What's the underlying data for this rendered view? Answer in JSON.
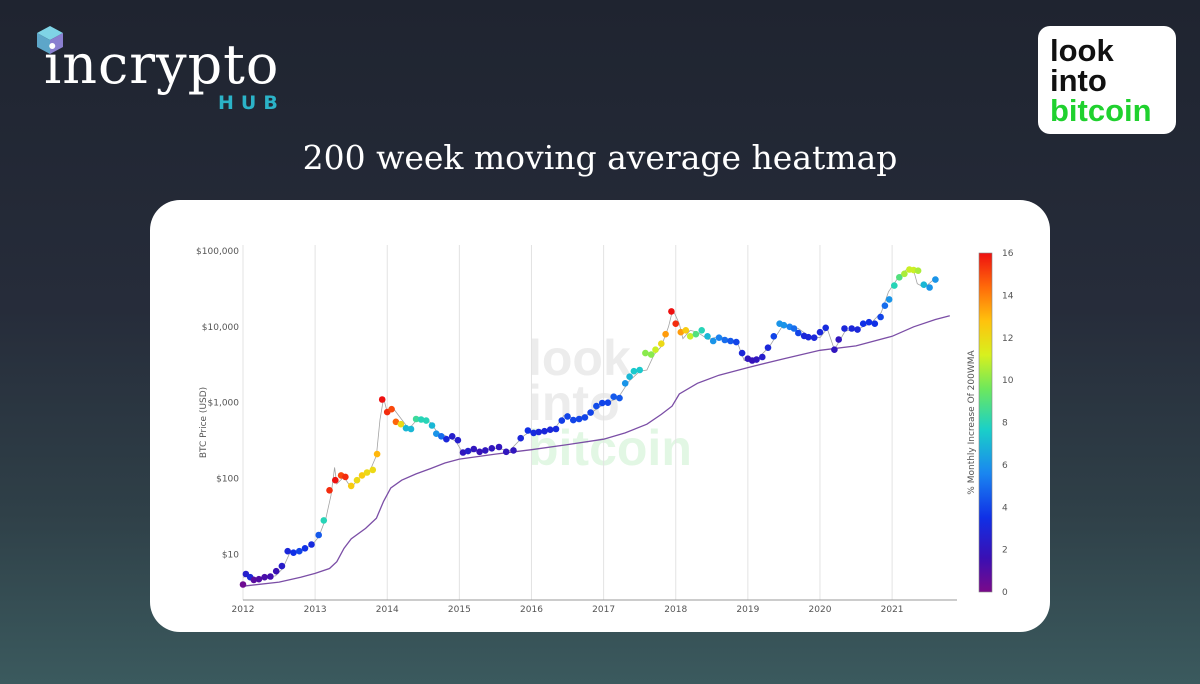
{
  "brand": {
    "name": "incrypto",
    "sub": "HUB",
    "accent": "#2bb3c8"
  },
  "partner_logo": {
    "line1": "look",
    "line2": "into",
    "line3": "bitcoin",
    "green": "#1fd12e"
  },
  "page_title": "200 week moving average heatmap",
  "chart_data": {
    "type": "scatter",
    "yscale": "log",
    "ylabel": "BTC Price (USD)",
    "ylim": [
      2.5,
      120000
    ],
    "y_ticks": [
      10,
      100,
      1000,
      10000,
      100000
    ],
    "y_tick_labels": [
      "$10",
      "$100",
      "$1,000",
      "$10,000",
      "$100,000"
    ],
    "xlim": [
      2012.0,
      2021.9
    ],
    "x_ticks": [
      2012,
      2013,
      2014,
      2015,
      2016,
      2017,
      2018,
      2019,
      2020,
      2021
    ],
    "x_tick_labels": [
      "2012",
      "2013",
      "2014",
      "2015",
      "2016",
      "2017",
      "2018",
      "2019",
      "2020",
      "2021"
    ],
    "grid": true,
    "watermark": [
      "look",
      "into",
      "bitcoin"
    ],
    "colorbar": {
      "label": "% Monthly Increase Of 200WMA",
      "min": 0,
      "max": 16,
      "ticks": [
        0,
        2,
        4,
        6,
        8,
        10,
        12,
        14,
        16
      ]
    },
    "series": [
      {
        "type": "line",
        "color": "#7b4ea6",
        "points": [
          [
            2012.0,
            3.8
          ],
          [
            2012.5,
            4.3
          ],
          [
            2012.8,
            5.0
          ],
          [
            2013.0,
            5.6
          ],
          [
            2013.2,
            6.5
          ],
          [
            2013.3,
            8
          ],
          [
            2013.4,
            12
          ],
          [
            2013.5,
            16
          ],
          [
            2013.7,
            22
          ],
          [
            2013.85,
            30
          ],
          [
            2013.95,
            50
          ],
          [
            2014.05,
            75
          ],
          [
            2014.2,
            95
          ],
          [
            2014.4,
            115
          ],
          [
            2014.6,
            135
          ],
          [
            2014.8,
            160
          ],
          [
            2015.0,
            180
          ],
          [
            2015.5,
            210
          ],
          [
            2016.0,
            240
          ],
          [
            2016.5,
            280
          ],
          [
            2017.0,
            330
          ],
          [
            2017.3,
            400
          ],
          [
            2017.6,
            520
          ],
          [
            2017.8,
            700
          ],
          [
            2017.95,
            900
          ],
          [
            2018.05,
            1300
          ],
          [
            2018.3,
            1800
          ],
          [
            2018.6,
            2300
          ],
          [
            2019.0,
            2900
          ],
          [
            2019.5,
            3800
          ],
          [
            2020.0,
            4900
          ],
          [
            2020.5,
            5600
          ],
          [
            2021.0,
            7500
          ],
          [
            2021.3,
            10000
          ],
          [
            2021.6,
            12500
          ],
          [
            2021.8,
            14000
          ]
        ]
      },
      {
        "type": "line",
        "color": "#a3a3a3",
        "points": [
          [
            2012.0,
            5.0
          ],
          [
            2012.1,
            5.3
          ],
          [
            2012.2,
            4.8
          ],
          [
            2012.3,
            5.0
          ],
          [
            2012.45,
            5.2
          ],
          [
            2012.55,
            6.5
          ],
          [
            2012.65,
            10.5
          ],
          [
            2012.8,
            11.5
          ],
          [
            2012.95,
            13
          ],
          [
            2013.05,
            17
          ],
          [
            2013.15,
            30
          ],
          [
            2013.22,
            60
          ],
          [
            2013.27,
            140
          ],
          [
            2013.3,
            85
          ],
          [
            2013.4,
            105
          ],
          [
            2013.5,
            75
          ],
          [
            2013.6,
            100
          ],
          [
            2013.75,
            120
          ],
          [
            2013.85,
            200
          ],
          [
            2013.9,
            600
          ],
          [
            2013.95,
            1150
          ],
          [
            2014.0,
            750
          ],
          [
            2014.1,
            800
          ],
          [
            2014.2,
            600
          ],
          [
            2014.3,
            450
          ],
          [
            2014.4,
            580
          ],
          [
            2014.5,
            600
          ],
          [
            2014.6,
            550
          ],
          [
            2014.7,
            400
          ],
          [
            2014.8,
            370
          ],
          [
            2014.95,
            310
          ],
          [
            2015.05,
            215
          ],
          [
            2015.3,
            235
          ],
          [
            2015.5,
            250
          ],
          [
            2015.7,
            235
          ],
          [
            2015.9,
            370
          ],
          [
            2016.0,
            430
          ],
          [
            2016.3,
            420
          ],
          [
            2016.45,
            680
          ],
          [
            2016.6,
            620
          ],
          [
            2016.8,
            710
          ],
          [
            2017.0,
            950
          ],
          [
            2017.2,
            1150
          ],
          [
            2017.35,
            1900
          ],
          [
            2017.5,
            2600
          ],
          [
            2017.6,
            2700
          ],
          [
            2017.7,
            4300
          ],
          [
            2017.8,
            5500
          ],
          [
            2017.9,
            10000
          ],
          [
            2017.96,
            17000
          ],
          [
            2018.05,
            11000
          ],
          [
            2018.1,
            7000
          ],
          [
            2018.2,
            9000
          ],
          [
            2018.3,
            8500
          ],
          [
            2018.45,
            6800
          ],
          [
            2018.6,
            7500
          ],
          [
            2018.85,
            6400
          ],
          [
            2018.95,
            3600
          ],
          [
            2019.1,
            3500
          ],
          [
            2019.3,
            5500
          ],
          [
            2019.5,
            11000
          ],
          [
            2019.7,
            9500
          ],
          [
            2019.85,
            7500
          ],
          [
            2020.0,
            7200
          ],
          [
            2020.1,
            9500
          ],
          [
            2020.2,
            5000
          ],
          [
            2020.35,
            8800
          ],
          [
            2020.5,
            9200
          ],
          [
            2020.7,
            11000
          ],
          [
            2020.85,
            15500
          ],
          [
            2020.95,
            29000
          ],
          [
            2021.1,
            47000
          ],
          [
            2021.2,
            57000
          ],
          [
            2021.3,
            55000
          ],
          [
            2021.35,
            37000
          ],
          [
            2021.45,
            33000
          ],
          [
            2021.55,
            40000
          ],
          [
            2021.62,
            46000
          ]
        ]
      }
    ],
    "points": [
      [
        2012.0,
        4.0,
        0.3
      ],
      [
        2012.04,
        5.5,
        2.5
      ],
      [
        2012.1,
        5.0,
        3.0
      ],
      [
        2012.15,
        4.6,
        0.8
      ],
      [
        2012.22,
        4.7,
        1.0
      ],
      [
        2012.3,
        5.0,
        1.2
      ],
      [
        2012.38,
        5.1,
        1.4
      ],
      [
        2012.46,
        6.0,
        1.6
      ],
      [
        2012.54,
        7.0,
        2.4
      ],
      [
        2012.62,
        11.0,
        3.0
      ],
      [
        2012.7,
        10.5,
        3.5
      ],
      [
        2012.78,
        11.0,
        4.0
      ],
      [
        2012.86,
        12.0,
        3.5
      ],
      [
        2012.95,
        13.5,
        3.2
      ],
      [
        2013.05,
        18.0,
        4.5
      ],
      [
        2013.12,
        28.0,
        8.0
      ],
      [
        2013.2,
        70.0,
        15.5
      ],
      [
        2013.28,
        95.0,
        16
      ],
      [
        2013.36,
        110.0,
        15
      ],
      [
        2013.42,
        105.0,
        15.5
      ],
      [
        2013.5,
        80.0,
        12.5
      ],
      [
        2013.58,
        95.0,
        12
      ],
      [
        2013.65,
        110.0,
        12.5
      ],
      [
        2013.72,
        120.0,
        12
      ],
      [
        2013.8,
        130.0,
        12
      ],
      [
        2013.86,
        210.0,
        13
      ],
      [
        2013.93,
        1100.0,
        16
      ],
      [
        2014.0,
        750.0,
        15.5
      ],
      [
        2014.06,
        820.0,
        15
      ],
      [
        2014.12,
        560.0,
        14.5
      ],
      [
        2014.19,
        520.0,
        12
      ],
      [
        2014.26,
        460.0,
        7
      ],
      [
        2014.33,
        450.0,
        7
      ],
      [
        2014.4,
        610.0,
        8.5
      ],
      [
        2014.47,
        600.0,
        8
      ],
      [
        2014.54,
        580.0,
        8
      ],
      [
        2014.62,
        500.0,
        7
      ],
      [
        2014.68,
        390.0,
        6
      ],
      [
        2014.75,
        360.0,
        5
      ],
      [
        2014.82,
        330.0,
        3
      ],
      [
        2014.9,
        360.0,
        2.5
      ],
      [
        2014.98,
        320.0,
        2.5
      ],
      [
        2015.05,
        220.0,
        2
      ],
      [
        2015.12,
        230.0,
        2.5
      ],
      [
        2015.2,
        245.0,
        2
      ],
      [
        2015.28,
        225.0,
        1.8
      ],
      [
        2015.36,
        235.0,
        2
      ],
      [
        2015.45,
        250.0,
        2
      ],
      [
        2015.55,
        260.0,
        2
      ],
      [
        2015.65,
        225.0,
        2
      ],
      [
        2015.75,
        235.0,
        2
      ],
      [
        2015.85,
        340.0,
        3
      ],
      [
        2015.95,
        430.0,
        3.5
      ],
      [
        2016.03,
        400.0,
        3.2
      ],
      [
        2016.1,
        410.0,
        3
      ],
      [
        2016.18,
        420.0,
        3
      ],
      [
        2016.26,
        440.0,
        3
      ],
      [
        2016.34,
        450.0,
        3.2
      ],
      [
        2016.42,
        580.0,
        3.8
      ],
      [
        2016.5,
        660.0,
        4
      ],
      [
        2016.58,
        590.0,
        4
      ],
      [
        2016.66,
        610.0,
        4
      ],
      [
        2016.74,
        640.0,
        4
      ],
      [
        2016.82,
        740.0,
        4
      ],
      [
        2016.9,
        900.0,
        4.2
      ],
      [
        2016.98,
        990.0,
        4
      ],
      [
        2017.06,
        1000.0,
        4
      ],
      [
        2017.14,
        1200.0,
        4.5
      ],
      [
        2017.22,
        1150.0,
        4.5
      ],
      [
        2017.3,
        1800.0,
        6
      ],
      [
        2017.36,
        2200.0,
        7
      ],
      [
        2017.42,
        2600.0,
        7.5
      ],
      [
        2017.5,
        2700.0,
        7.5
      ],
      [
        2017.58,
        4500.0,
        10
      ],
      [
        2017.66,
        4300.0,
        10
      ],
      [
        2017.72,
        5000.0,
        11
      ],
      [
        2017.8,
        6000.0,
        12
      ],
      [
        2017.86,
        8000.0,
        13.5
      ],
      [
        2017.94,
        16000.0,
        16
      ],
      [
        2018.0,
        11000.0,
        15.5
      ],
      [
        2018.07,
        8500.0,
        13.5
      ],
      [
        2018.14,
        9000.0,
        12.5
      ],
      [
        2018.2,
        7500.0,
        11
      ],
      [
        2018.28,
        8000.0,
        9
      ],
      [
        2018.36,
        9000.0,
        8
      ],
      [
        2018.44,
        7500.0,
        7
      ],
      [
        2018.52,
        6500.0,
        6
      ],
      [
        2018.6,
        7200.0,
        5.5
      ],
      [
        2018.68,
        6700.0,
        5
      ],
      [
        2018.76,
        6500.0,
        4.5
      ],
      [
        2018.84,
        6300.0,
        4
      ],
      [
        2018.92,
        4500.0,
        3
      ],
      [
        2019.0,
        3800.0,
        2
      ],
      [
        2019.06,
        3600.0,
        1.8
      ],
      [
        2019.12,
        3700.0,
        2
      ],
      [
        2019.2,
        4000.0,
        2.5
      ],
      [
        2019.28,
        5300.0,
        3
      ],
      [
        2019.36,
        7500.0,
        4
      ],
      [
        2019.44,
        11000.0,
        6
      ],
      [
        2019.5,
        10500.0,
        6
      ],
      [
        2019.58,
        10000.0,
        5.5
      ],
      [
        2019.64,
        9500.0,
        5
      ],
      [
        2019.7,
        8300.0,
        4
      ],
      [
        2019.78,
        7600.0,
        3
      ],
      [
        2019.84,
        7300.0,
        3
      ],
      [
        2019.92,
        7200.0,
        3
      ],
      [
        2020.0,
        8500.0,
        3
      ],
      [
        2020.08,
        9700.0,
        3.2
      ],
      [
        2020.2,
        5000.0,
        2
      ],
      [
        2020.26,
        6800.0,
        2
      ],
      [
        2020.34,
        9500.0,
        3
      ],
      [
        2020.44,
        9500.0,
        3
      ],
      [
        2020.52,
        9200.0,
        3
      ],
      [
        2020.6,
        11000.0,
        3.5
      ],
      [
        2020.68,
        11500.0,
        3.5
      ],
      [
        2020.76,
        11000.0,
        3.5
      ],
      [
        2020.84,
        13500.0,
        4
      ],
      [
        2020.9,
        19000.0,
        5
      ],
      [
        2020.96,
        23000.0,
        6
      ],
      [
        2021.03,
        35000.0,
        8
      ],
      [
        2021.1,
        45000.0,
        9
      ],
      [
        2021.17,
        50000.0,
        10.5
      ],
      [
        2021.24,
        57000.0,
        11
      ],
      [
        2021.3,
        56000.0,
        11
      ],
      [
        2021.36,
        55000.0,
        10.5
      ],
      [
        2021.44,
        36000.0,
        7
      ],
      [
        2021.52,
        33000.0,
        6
      ],
      [
        2021.6,
        42000.0,
        6
      ]
    ]
  }
}
